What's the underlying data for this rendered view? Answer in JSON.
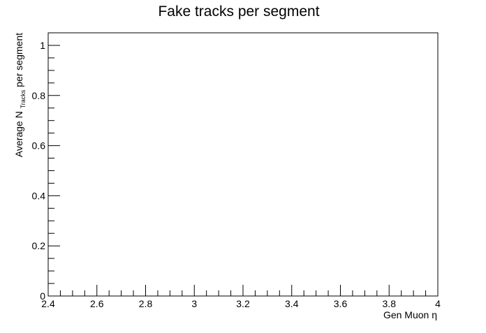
{
  "chart_data": {
    "type": "scatter",
    "title": "Fake tracks per segment",
    "xlabel": "Gen Muon η",
    "ylabel": {
      "prefix": "Average N",
      "subscript": "Tracks",
      "suffix": " per segment"
    },
    "xlim": [
      2.4,
      4.0
    ],
    "ylim": [
      0,
      1.05
    ],
    "x_ticks": [
      "2.4",
      "2.6",
      "2.8",
      "3",
      "3.2",
      "3.4",
      "3.6",
      "3.8",
      "4"
    ],
    "y_ticks": [
      "0",
      "0.2",
      "0.4",
      "0.6",
      "0.8",
      "1"
    ],
    "series": [],
    "grid": false,
    "legend": "none"
  }
}
